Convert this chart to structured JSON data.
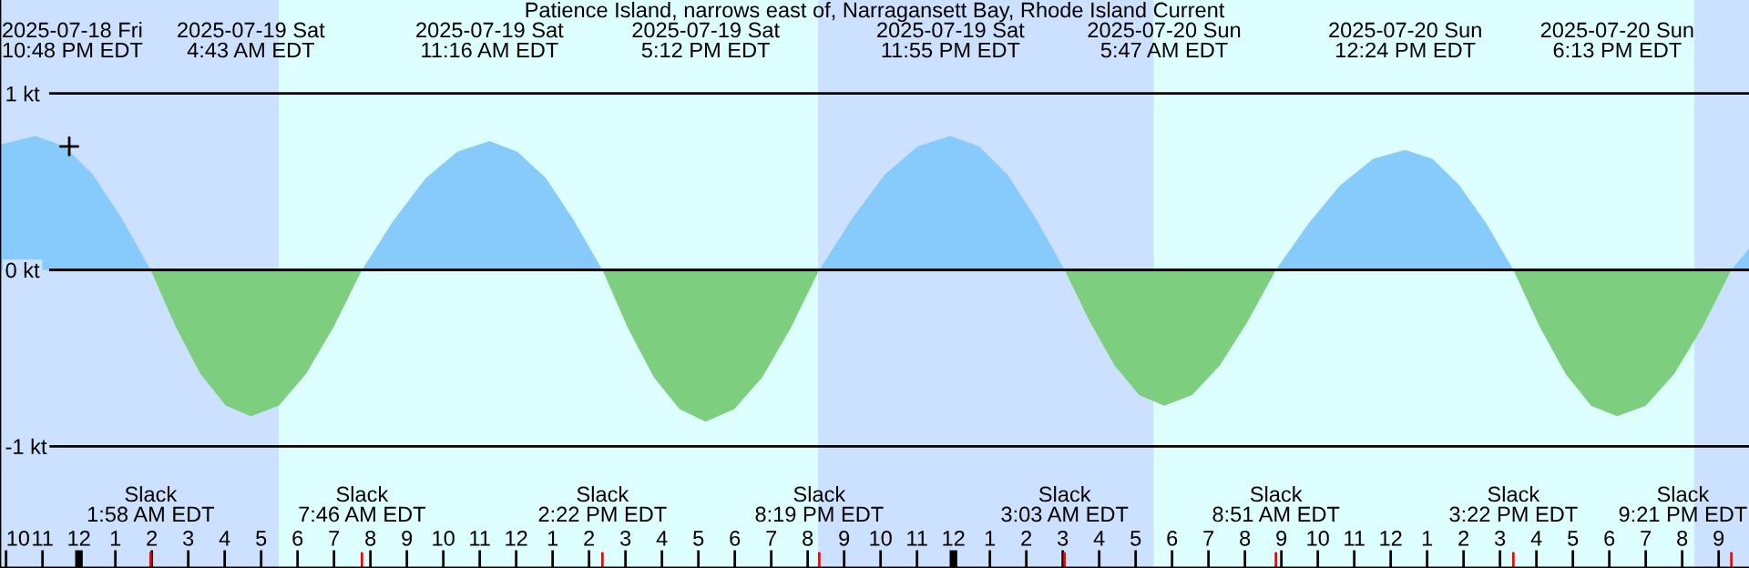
{
  "chart_data": {
    "type": "area",
    "title": "Patience Island, narrows east of, Narragansett Bay, Rhode Island Current",
    "x": [
      "2025-07-18T21:50",
      "2025-07-18T22:48",
      "2025-07-18T23:36",
      "2025-07-19T00:23",
      "2025-07-19T01:11",
      "2025-07-19T01:58",
      "2025-07-19T02:39",
      "2025-07-19T03:20",
      "2025-07-19T04:02",
      "2025-07-19T04:43",
      "2025-07-19T05:29",
      "2025-07-19T06:14",
      "2025-07-19T07:00",
      "2025-07-19T07:46",
      "2025-07-19T08:38",
      "2025-07-19T09:31",
      "2025-07-19T10:23",
      "2025-07-19T11:16",
      "2025-07-19T12:02",
      "2025-07-19T12:49",
      "2025-07-19T13:35",
      "2025-07-19T14:22",
      "2025-07-19T15:04",
      "2025-07-19T15:47",
      "2025-07-19T16:29",
      "2025-07-19T17:12",
      "2025-07-19T17:59",
      "2025-07-19T18:45",
      "2025-07-19T19:32",
      "2025-07-19T20:19",
      "2025-07-19T21:13",
      "2025-07-19T22:07",
      "2025-07-19T23:01",
      "2025-07-19T23:55",
      "2025-07-20T00:42",
      "2025-07-20T01:29",
      "2025-07-20T02:16",
      "2025-07-20T03:03",
      "2025-07-20T03:44",
      "2025-07-20T04:25",
      "2025-07-20T05:06",
      "2025-07-20T05:47",
      "2025-07-20T06:33",
      "2025-07-20T07:19",
      "2025-07-20T08:05",
      "2025-07-20T08:51",
      "2025-07-20T09:44",
      "2025-07-20T10:37",
      "2025-07-20T11:31",
      "2025-07-20T12:24",
      "2025-07-20T13:09",
      "2025-07-20T13:53",
      "2025-07-20T14:38",
      "2025-07-20T15:22",
      "2025-07-20T16:05",
      "2025-07-20T16:48",
      "2025-07-20T17:30",
      "2025-07-20T18:13",
      "2025-07-20T19:00",
      "2025-07-20T19:47",
      "2025-07-20T20:34",
      "2025-07-20T21:21",
      "2025-07-20T21:50"
    ],
    "series": [
      {
        "color": "#87cbfc",
        "values": [
          0.71,
          0.76,
          0.7,
          0.54,
          0.29,
          0,
          null,
          null,
          null,
          null,
          null,
          null,
          null,
          0,
          0.28,
          0.52,
          0.67,
          0.73,
          0.67,
          0.52,
          0.28,
          0,
          null,
          null,
          null,
          null,
          null,
          null,
          null,
          0,
          0.29,
          0.54,
          0.7,
          0.76,
          0.7,
          0.54,
          0.29,
          0,
          null,
          null,
          null,
          null,
          null,
          null,
          null,
          0,
          0.26,
          0.48,
          0.63,
          0.68,
          0.63,
          0.48,
          0.26,
          0,
          null,
          null,
          null,
          null,
          null,
          null,
          null,
          0,
          0.12
        ]
      },
      {
        "color": "#7dcf7f",
        "values": [
          null,
          null,
          null,
          null,
          null,
          0,
          -0.32,
          -0.59,
          -0.77,
          -0.83,
          -0.77,
          -0.59,
          -0.32,
          0,
          null,
          null,
          null,
          null,
          null,
          null,
          null,
          0,
          -0.33,
          -0.61,
          -0.79,
          -0.86,
          -0.79,
          -0.61,
          -0.33,
          0,
          null,
          null,
          null,
          null,
          null,
          null,
          null,
          0,
          -0.29,
          -0.54,
          -0.71,
          -0.77,
          -0.71,
          -0.54,
          -0.29,
          0,
          null,
          null,
          null,
          null,
          null,
          null,
          null,
          0,
          -0.32,
          -0.59,
          -0.77,
          -0.83,
          -0.77,
          -0.59,
          -0.32,
          0,
          null
        ]
      },
      {
        "type": "scatter",
        "marker": "cross",
        "color": "#000000",
        "x": [
          "2025-07-18T23:44"
        ],
        "values": [
          0.7
        ]
      }
    ],
    "xlim": [
      "2025-07-18T21:50",
      "2025-07-20T21:50"
    ],
    "ylim": [
      -1.69,
      1.53
    ],
    "yticks": [
      {
        "value": 1,
        "label": "1 kt"
      },
      {
        "value": 0,
        "label": "0 kt"
      },
      {
        "value": -1,
        "label": "-1 kt"
      }
    ],
    "xticks": [
      {
        "value": "2025-07-18T22:00",
        "label": "10"
      },
      {
        "value": "2025-07-18T23:00",
        "label": "11"
      },
      {
        "value": "2025-07-19T00:00",
        "label": "12"
      },
      {
        "value": "2025-07-19T01:00",
        "label": "1"
      },
      {
        "value": "2025-07-19T02:00",
        "label": "2"
      },
      {
        "value": "2025-07-19T03:00",
        "label": "3"
      },
      {
        "value": "2025-07-19T04:00",
        "label": "4"
      },
      {
        "value": "2025-07-19T05:00",
        "label": "5"
      },
      {
        "value": "2025-07-19T06:00",
        "label": "6"
      },
      {
        "value": "2025-07-19T07:00",
        "label": "7"
      },
      {
        "value": "2025-07-19T08:00",
        "label": "8"
      },
      {
        "value": "2025-07-19T09:00",
        "label": "9"
      },
      {
        "value": "2025-07-19T10:00",
        "label": "10"
      },
      {
        "value": "2025-07-19T11:00",
        "label": "11"
      },
      {
        "value": "2025-07-19T12:00",
        "label": "12"
      },
      {
        "value": "2025-07-19T13:00",
        "label": "1"
      },
      {
        "value": "2025-07-19T14:00",
        "label": "2"
      },
      {
        "value": "2025-07-19T15:00",
        "label": "3"
      },
      {
        "value": "2025-07-19T16:00",
        "label": "4"
      },
      {
        "value": "2025-07-19T17:00",
        "label": "5"
      },
      {
        "value": "2025-07-19T18:00",
        "label": "6"
      },
      {
        "value": "2025-07-19T19:00",
        "label": "7"
      },
      {
        "value": "2025-07-19T20:00",
        "label": "8"
      },
      {
        "value": "2025-07-19T21:00",
        "label": "9"
      },
      {
        "value": "2025-07-19T22:00",
        "label": "10"
      },
      {
        "value": "2025-07-19T23:00",
        "label": "11"
      },
      {
        "value": "2025-07-20T00:00",
        "label": "12"
      },
      {
        "value": "2025-07-20T01:00",
        "label": "1"
      },
      {
        "value": "2025-07-20T02:00",
        "label": "2"
      },
      {
        "value": "2025-07-20T03:00",
        "label": "3"
      },
      {
        "value": "2025-07-20T04:00",
        "label": "4"
      },
      {
        "value": "2025-07-20T05:00",
        "label": "5"
      },
      {
        "value": "2025-07-20T06:00",
        "label": "6"
      },
      {
        "value": "2025-07-20T07:00",
        "label": "7"
      },
      {
        "value": "2025-07-20T08:00",
        "label": "8"
      },
      {
        "value": "2025-07-20T09:00",
        "label": "9"
      },
      {
        "value": "2025-07-20T10:00",
        "label": "10"
      },
      {
        "value": "2025-07-20T11:00",
        "label": "11"
      },
      {
        "value": "2025-07-20T12:00",
        "label": "12"
      },
      {
        "value": "2025-07-20T13:00",
        "label": "1"
      },
      {
        "value": "2025-07-20T14:00",
        "label": "2"
      },
      {
        "value": "2025-07-20T15:00",
        "label": "3"
      },
      {
        "value": "2025-07-20T16:00",
        "label": "4"
      },
      {
        "value": "2025-07-20T17:00",
        "label": "5"
      },
      {
        "value": "2025-07-20T18:00",
        "label": "6"
      },
      {
        "value": "2025-07-20T19:00",
        "label": "7"
      },
      {
        "value": "2025-07-20T20:00",
        "label": "8"
      },
      {
        "value": "2025-07-20T21:00",
        "label": "9"
      }
    ],
    "grid": "y",
    "bands": [
      {
        "axis": "x",
        "from": "2025-07-18T21:50",
        "to": "2025-07-19T05:29",
        "color": "#cce0ff"
      },
      {
        "axis": "x",
        "from": "2025-07-19T05:29",
        "to": "2025-07-19T20:17",
        "color": "#ddffff"
      },
      {
        "axis": "x",
        "from": "2025-07-19T20:17",
        "to": "2025-07-20T05:30",
        "color": "#cce0ff"
      },
      {
        "axis": "x",
        "from": "2025-07-20T05:30",
        "to": "2025-07-20T20:20",
        "color": "#ddffff"
      },
      {
        "axis": "x",
        "from": "2025-07-20T20:20",
        "to": "2025-07-20T21:50",
        "color": "#cce0ff"
      }
    ],
    "annotations": [
      "2025-07-18 Fri\n10:48 PM EDT",
      "2025-07-19 Sat\n4:43 AM EDT",
      "2025-07-19 Sat\n11:16 AM EDT",
      "2025-07-19 Sat\n5:12 PM EDT",
      "2025-07-19 Sat\n11:55 PM EDT",
      "2025-07-20 Sun\n5:47 AM EDT",
      "2025-07-20 Sun\n12:24 PM EDT",
      "2025-07-20 Sun\n6:13 PM EDT",
      "Slack\n1:58 AM EDT",
      "Slack\n7:46 AM EDT",
      "Slack\n2:22 PM EDT",
      "Slack\n8:19 PM EDT",
      "Slack\n3:03 AM EDT",
      "Slack\n8:51 AM EDT",
      "Slack\n3:22 PM EDT",
      "Slack\n9:21 PM EDT"
    ]
  }
}
